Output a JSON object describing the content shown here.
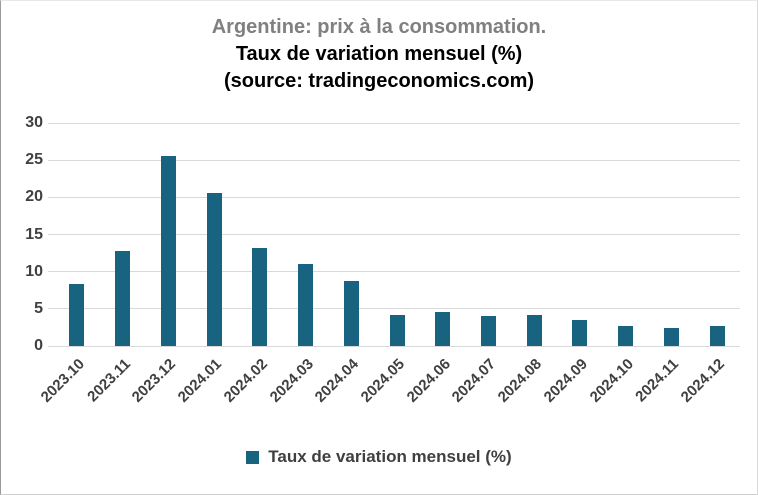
{
  "title": {
    "line1": "Argentine: prix à la consommation.",
    "line2": "Taux de variation mensuel (%)",
    "line3": "(source: tradingeconomics.com)"
  },
  "legend": {
    "label": "Taux de variation mensuel (%)"
  },
  "colors": {
    "bar": "#186380",
    "title_gray": "#808080",
    "title_black": "#000000",
    "axis_text": "#404040",
    "gridline": "#d9d9d9",
    "background": "#ffffff"
  },
  "chart_data": {
    "type": "bar",
    "title": "Argentine: prix à la consommation. Taux de variation mensuel (%) (source: tradingeconomics.com)",
    "categories": [
      "2023.10",
      "2023.11",
      "2023.12",
      "2024.01",
      "2024.02",
      "2024.03",
      "2024.04",
      "2024.05",
      "2024.06",
      "2024.07",
      "2024.08",
      "2024.09",
      "2024.10",
      "2024.11",
      "2024.12"
    ],
    "series": [
      {
        "name": "Taux de variation mensuel (%)",
        "values": [
          8.3,
          12.8,
          25.5,
          20.6,
          13.2,
          11.0,
          8.8,
          4.2,
          4.6,
          4.0,
          4.2,
          3.5,
          2.7,
          2.4,
          2.7
        ]
      }
    ],
    "xlabel": "",
    "ylabel": "",
    "ylim": [
      0,
      30
    ],
    "yticks": [
      0,
      5,
      10,
      15,
      20,
      25,
      30
    ],
    "grid": true,
    "legend_position": "bottom"
  }
}
